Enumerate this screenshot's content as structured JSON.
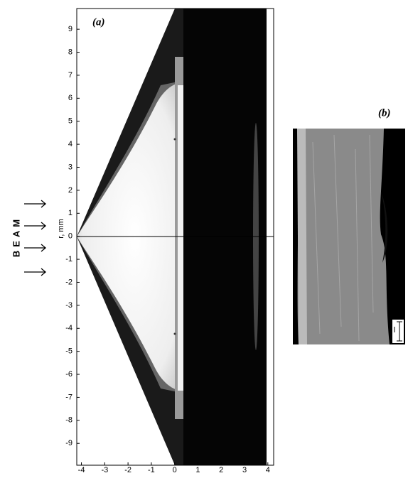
{
  "panel_a": {
    "label": "(a)",
    "y_axis_label": "r, mm",
    "xlim": [
      -4.2,
      4.25
    ],
    "ylim": [
      -9.95,
      9.9
    ],
    "xticks": [
      -4,
      -3,
      -2,
      -1,
      0,
      1,
      2,
      3,
      4
    ],
    "yticks": [
      -9,
      -8,
      -7,
      -6,
      -5,
      -4,
      -3,
      -2,
      -1,
      0,
      1,
      2,
      3,
      4,
      5,
      6,
      7,
      8,
      9
    ]
  },
  "beam_label": "BEAM",
  "panel_b": {
    "label": "(b)"
  }
}
